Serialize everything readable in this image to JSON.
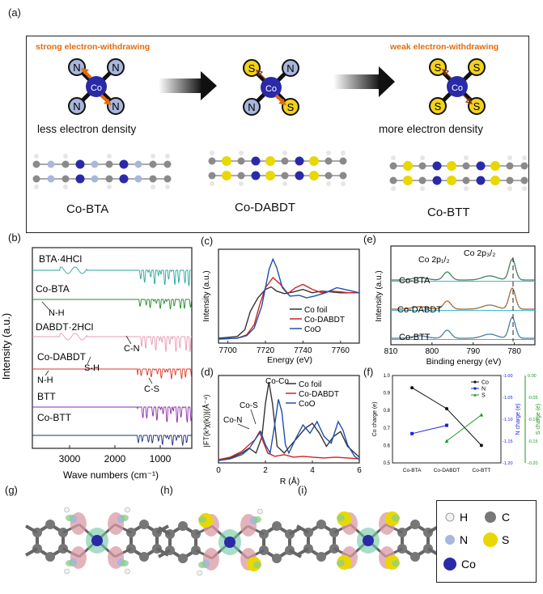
{
  "panels": {
    "a": "(a)",
    "b": "(b)",
    "c": "(c)",
    "d": "(d)",
    "e": "(e)",
    "f": "(f)",
    "g": "(g)",
    "h": "(h)",
    "i": "(i)"
  },
  "scheme": {
    "strong_label": "strong electron-withdrawing",
    "weak_label": "weak electron-withdrawing",
    "less_density": "less electron density",
    "more_density": "more electron density",
    "names": [
      "Co-BTA",
      "Co-DABDT",
      "Co-BTT"
    ],
    "center_atom": "Co",
    "ligands": {
      "btA": [
        "N",
        "N",
        "N",
        "N"
      ],
      "dabdt": [
        "S",
        "N",
        "N",
        "S"
      ],
      "btt": [
        "S",
        "S",
        "S",
        "S"
      ]
    }
  },
  "legend_atoms": [
    {
      "sym": "H",
      "color": "#f2f2f2"
    },
    {
      "sym": "C",
      "color": "#777777"
    },
    {
      "sym": "N",
      "color": "#a9b6dd"
    },
    {
      "sym": "S",
      "color": "#e8d800"
    },
    {
      "sym": "Co",
      "color": "#2a2aa8"
    }
  ],
  "chart_b": {
    "ylabel": "Intensity (a.u.)",
    "xlabel": "Wave numbers (cm⁻¹)",
    "xticks": [
      "3000",
      "2000",
      "1000"
    ],
    "xlim": [
      4000,
      500
    ],
    "series": [
      {
        "name": "BTA·4HCl",
        "color": "#2aa59a"
      },
      {
        "name": "Co-BTA",
        "color": "#1f8a2a"
      },
      {
        "name": "DABDT·2HCl",
        "color": "#e79ab5"
      },
      {
        "name": "Co-DABDT",
        "color": "#d83a2a"
      },
      {
        "name": "BTT",
        "color": "#8a2aa8"
      },
      {
        "name": "Co-BTT",
        "color": "#1f2f80"
      }
    ],
    "annotations": [
      "N-H",
      "C-N",
      "S-H",
      "N-H",
      "C-S"
    ]
  },
  "chart_data": [
    {
      "type": "line",
      "panel": "c",
      "xlabel": "Energy (eV)",
      "ylabel": "Intensity (a.u.)",
      "xlim": [
        7695,
        7770
      ],
      "xticks": [
        7700,
        7720,
        7740,
        7760
      ],
      "series": [
        {
          "name": "Co foil",
          "color": "#333333",
          "x": [
            7695,
            7705,
            7709,
            7712,
            7716,
            7720,
            7723,
            7726,
            7730,
            7735,
            7740,
            7745,
            7750,
            7755,
            7760,
            7765,
            7770
          ],
          "y": [
            0.02,
            0.04,
            0.12,
            0.34,
            0.5,
            0.6,
            0.63,
            0.58,
            0.55,
            0.57,
            0.6,
            0.56,
            0.58,
            0.57,
            0.56,
            0.56,
            0.56
          ]
        },
        {
          "name": "Co-DABDT",
          "color": "#d32020",
          "x": [
            7695,
            7705,
            7710,
            7714,
            7717,
            7720,
            7724,
            7728,
            7732,
            7736,
            7740,
            7745,
            7750,
            7755,
            7760,
            7765,
            7770
          ],
          "y": [
            0.01,
            0.02,
            0.06,
            0.18,
            0.42,
            0.62,
            0.74,
            0.66,
            0.55,
            0.62,
            0.66,
            0.6,
            0.56,
            0.58,
            0.57,
            0.56,
            0.56
          ]
        },
        {
          "name": "CoO",
          "color": "#1f4fb0",
          "x": [
            7695,
            7705,
            7710,
            7714,
            7718,
            7722,
            7724,
            7726,
            7729,
            7733,
            7738,
            7742,
            7746,
            7752,
            7758,
            7764,
            7770
          ],
          "y": [
            0.01,
            0.02,
            0.05,
            0.14,
            0.4,
            0.84,
            0.96,
            0.86,
            0.62,
            0.52,
            0.53,
            0.5,
            0.52,
            0.56,
            0.62,
            0.59,
            0.56
          ]
        }
      ]
    },
    {
      "type": "line",
      "panel": "d",
      "xlabel": "R (Å)",
      "ylabel": "|FT(k³χ(k))|(Å⁻⁴)",
      "xlim": [
        0,
        6
      ],
      "xticks": [
        0,
        2,
        4,
        6
      ],
      "annotations": [
        "Co-Co",
        "Co-S",
        "Co-N"
      ],
      "series": [
        {
          "name": "Co foil",
          "color": "#333333",
          "x": [
            0,
            0.5,
            1,
            1.3,
            1.6,
            1.85,
            2.0,
            2.15,
            2.3,
            2.5,
            2.8,
            3.1,
            3.4,
            3.7,
            4.0,
            4.3,
            4.6,
            4.9,
            5.2,
            5.5,
            6.0
          ],
          "y": [
            0.02,
            0.04,
            0.1,
            0.16,
            0.1,
            0.3,
            0.7,
            0.96,
            0.7,
            0.18,
            0.1,
            0.2,
            0.3,
            0.4,
            0.46,
            0.34,
            0.18,
            0.3,
            0.36,
            0.18,
            0.05
          ]
        },
        {
          "name": "Co-DABDT",
          "color": "#d32020",
          "x": [
            0,
            0.5,
            1,
            1.3,
            1.55,
            1.75,
            1.9,
            2.1,
            2.4,
            2.8,
            3.2,
            3.6,
            4.0,
            4.5,
            5.0,
            5.5,
            6.0
          ],
          "y": [
            0.02,
            0.05,
            0.12,
            0.2,
            0.26,
            0.36,
            0.24,
            0.1,
            0.06,
            0.08,
            0.05,
            0.06,
            0.05,
            0.04,
            0.05,
            0.04,
            0.03
          ]
        },
        {
          "name": "CoO",
          "color": "#1f4fb0",
          "x": [
            0,
            0.5,
            1,
            1.3,
            1.6,
            1.8,
            2.0,
            2.2,
            2.4,
            2.55,
            2.7,
            2.85,
            3.0,
            3.3,
            3.6,
            3.9,
            4.2,
            4.5,
            4.8,
            5.1,
            5.3,
            5.5,
            5.8,
            6.0
          ],
          "y": [
            0.01,
            0.03,
            0.08,
            0.15,
            0.28,
            0.36,
            0.2,
            0.1,
            0.45,
            0.75,
            0.6,
            0.2,
            0.1,
            0.28,
            0.44,
            0.34,
            0.48,
            0.3,
            0.22,
            0.48,
            0.38,
            0.2,
            0.06,
            0.02
          ]
        }
      ]
    },
    {
      "type": "line",
      "panel": "e",
      "xlabel": "Binding energy (eV)",
      "ylabel": "Intensity (a.u.)",
      "xlim": [
        810,
        775
      ],
      "xticks": [
        810,
        800,
        790,
        780
      ],
      "annotations": [
        "Co 2p₁/₂",
        "Co 2p₃/₂"
      ],
      "series": [
        {
          "name": "Co-BTA",
          "color": "#2ea05a"
        },
        {
          "name": "Co-DABDT",
          "color": "#e0761a"
        },
        {
          "name": "Co-BTT",
          "color": "#3a9bd8"
        }
      ]
    },
    {
      "type": "line",
      "panel": "f",
      "categories": [
        "Co-BTA",
        "Co-DABDT",
        "Co-BTT"
      ],
      "ylabels": {
        "left": "Co charge (e)",
        "right1": "N charge (e)",
        "right2": "S charge (e)"
      },
      "series": [
        {
          "name": "Co",
          "color": "#111111",
          "axis": "left",
          "ylim": [
            0.5,
            1.0
          ],
          "values": [
            0.93,
            0.81,
            0.6
          ]
        },
        {
          "name": "N",
          "color": "#2020e0",
          "axis": "right1",
          "ylim": [
            -1.2,
            -1.0
          ],
          "values": [
            -1.133,
            -1.114,
            null
          ]
        },
        {
          "name": "S",
          "color": "#1c9a1c",
          "axis": "right2",
          "ylim": [
            -0.2,
            0.0
          ],
          "values": [
            null,
            -0.15,
            -0.09
          ]
        }
      ],
      "yticks_left": [
        "0.5",
        "0.6",
        "0.7",
        "0.8",
        "0.9",
        "1.0"
      ],
      "yticks_right1": [
        "-1.20",
        "-1.15",
        "-1.10",
        "-1.05",
        "-1.00"
      ],
      "yticks_right2": [
        "-0.20",
        "-0.15",
        "-0.10",
        "-0.05",
        "0.00"
      ]
    }
  ]
}
